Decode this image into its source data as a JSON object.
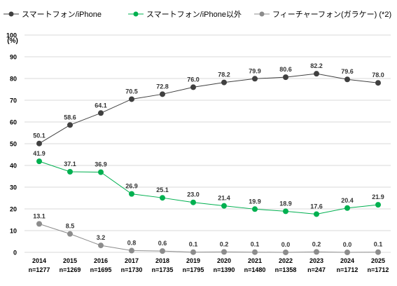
{
  "chart_data": {
    "type": "line",
    "y_unit_label": "(%)",
    "ylim": [
      0,
      100
    ],
    "y_ticks": [
      "0",
      "10",
      "20",
      "30",
      "40",
      "50",
      "60",
      "70",
      "80",
      "90",
      "100"
    ],
    "grid": true,
    "legend_position": "top-left",
    "categories": [
      "2014",
      "2015",
      "2016",
      "2017",
      "2018",
      "2019",
      "2020",
      "2021",
      "2022",
      "2023",
      "2024",
      "2025"
    ],
    "sample_sizes": [
      "n=1277",
      "n=1269",
      "n=1695",
      "n=1730",
      "n=1735",
      "n=1795",
      "n=1390",
      "n=1480",
      "n=1358",
      "n=247",
      "n=1712",
      "n=1712"
    ],
    "series": [
      {
        "name": "スマートフォン/iPhone",
        "color": "#404040",
        "values": [
          50.1,
          58.6,
          64.1,
          70.5,
          72.8,
          76.0,
          78.2,
          79.9,
          80.6,
          82.2,
          79.6,
          78.0
        ],
        "labels": [
          "50.1",
          "58.6",
          "64.1",
          "70.5",
          "72.8",
          "76.0",
          "78.2",
          "79.9",
          "80.6",
          "82.2",
          "79.6",
          "78.0"
        ]
      },
      {
        "name": "スマートフォン/iPhone以外",
        "color": "#00b050",
        "values": [
          41.9,
          37.1,
          36.9,
          26.9,
          25.1,
          23.0,
          21.4,
          19.9,
          18.9,
          17.6,
          20.4,
          21.9
        ],
        "labels": [
          "41.9",
          "37.1",
          "36.9",
          "26.9",
          "25.1",
          "23.0",
          "21.4",
          "19.9",
          "18.9",
          "17.6",
          "20.4",
          "21.9"
        ]
      },
      {
        "name": "フィーチャーフォン(ガラケー) (*2)",
        "color": "#8c8c8c",
        "values": [
          13.1,
          8.5,
          3.2,
          0.8,
          0.6,
          0.1,
          0.2,
          0.1,
          0.0,
          0.2,
          0.0,
          0.1
        ],
        "labels": [
          "13.1",
          "8.5",
          "3.2",
          "0.8",
          "0.6",
          "0.1",
          "0.2",
          "0.1",
          "0.0",
          "0.2",
          "0.0",
          "0.1"
        ]
      }
    ]
  }
}
